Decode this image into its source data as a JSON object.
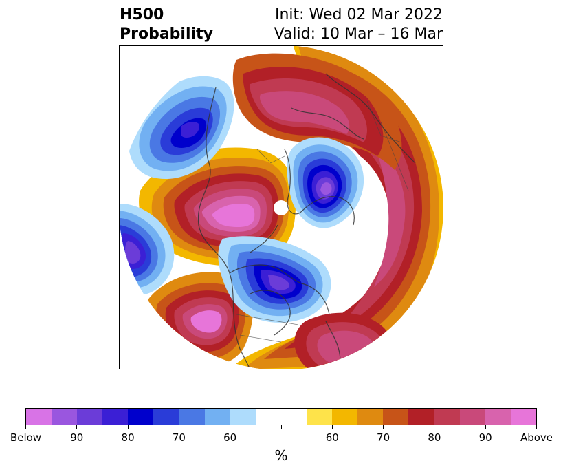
{
  "title": {
    "left_line1": "H500",
    "left_line2": "Probability",
    "right_line1": "Init: Wed 02 Mar 2022",
    "right_line2": "Valid: 10 Mar – 16 Mar"
  },
  "map": {
    "projection": "north-polar-stereographic",
    "features": [
      {
        "name": "above-normal-pacific-ridge",
        "category": "above",
        "max_level": "Above"
      },
      {
        "name": "below-normal-greenland",
        "category": "below",
        "max_level": "Below"
      },
      {
        "name": "below-normal-hudson-bay",
        "category": "below",
        "max_level": "Below"
      },
      {
        "name": "above-normal-russia",
        "category": "above",
        "max_level": "90"
      },
      {
        "name": "below-normal-north-pacific",
        "category": "below",
        "max_level": "90"
      }
    ]
  },
  "colorbar": {
    "colors": [
      "#d873e6",
      "#9a56df",
      "#6b3cd8",
      "#3b1fd5",
      "#0000cc",
      "#2a3cd8",
      "#4a78e4",
      "#72b0f2",
      "#aedcfc",
      "#ffffff",
      "#ffffff",
      "#fee34a",
      "#f3b700",
      "#df8a10",
      "#c75418",
      "#b22027",
      "#c03a52",
      "#c9497a",
      "#d863ad",
      "#e775d9"
    ],
    "tick_labels": [
      "Below",
      "90",
      "80",
      "70",
      "60",
      "",
      "60",
      "70",
      "80",
      "90",
      "Above"
    ],
    "unit": "%"
  }
}
